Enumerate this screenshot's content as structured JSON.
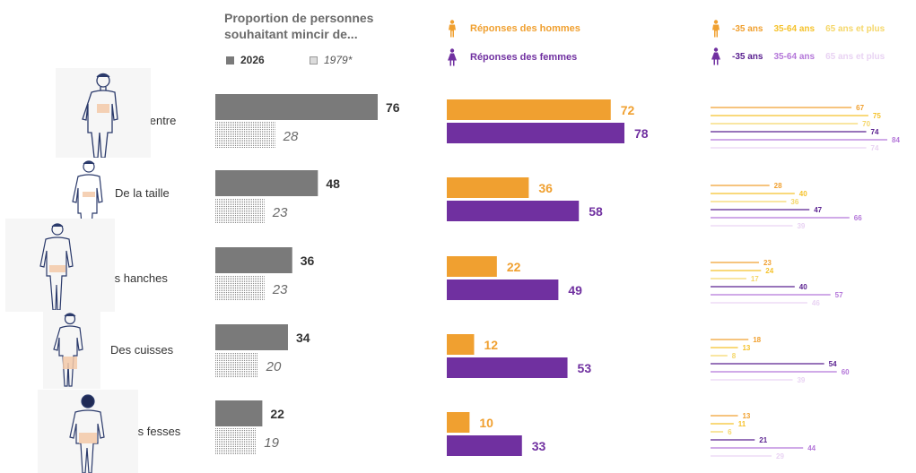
{
  "header": {
    "title": "Proportion de personnes souhaitant mincir de...",
    "legend_2026": "2026",
    "legend_1979": "1979*",
    "legend_hommes": "Réponses des hommes",
    "legend_femmes": "Réponses des femmes",
    "age_groups": [
      "-35 ans",
      "35-64 ans",
      "65 ans et plus"
    ]
  },
  "colors": {
    "total_2026": "#7a7a7a",
    "total_1979_dots": "#8a8a8a",
    "hommes": "#f0a030",
    "femmes": "#7030a0",
    "hommes_ages": [
      "#f0a030",
      "#f5c22c",
      "#f5d76a"
    ],
    "femmes_ages": [
      "#5a2190",
      "#b477d9",
      "#e9d3f3"
    ],
    "text_dark": "#333333",
    "text_italic": "#6a6a6a"
  },
  "chart_data": {
    "type": "bar",
    "categories": [
      "Du ventre",
      "De la taille",
      "Des hanches",
      "Des cuisses",
      "Des fesses"
    ],
    "totals": {
      "series": [
        {
          "name": "2026",
          "values": [
            76,
            48,
            36,
            34,
            22
          ]
        },
        {
          "name": "1979*",
          "values": [
            28,
            23,
            23,
            20,
            19
          ]
        }
      ]
    },
    "by_sex": {
      "series": [
        {
          "name": "Réponses des hommes",
          "values": [
            72,
            36,
            22,
            12,
            10
          ]
        },
        {
          "name": "Réponses des femmes",
          "values": [
            78,
            58,
            49,
            53,
            33
          ]
        }
      ]
    },
    "by_sex_age": {
      "series": [
        {
          "name": "Hommes -35 ans",
          "values": [
            67,
            28,
            23,
            18,
            13
          ]
        },
        {
          "name": "Hommes 35-64 ans",
          "values": [
            75,
            40,
            24,
            13,
            11
          ]
        },
        {
          "name": "Hommes 65 ans et plus",
          "values": [
            70,
            36,
            17,
            8,
            6
          ]
        },
        {
          "name": "Femmes -35 ans",
          "values": [
            74,
            47,
            40,
            54,
            21
          ]
        },
        {
          "name": "Femmes 35-64 ans",
          "values": [
            84,
            66,
            57,
            60,
            44
          ]
        },
        {
          "name": "Femmes 65 ans et plus",
          "values": [
            74,
            39,
            46,
            39,
            29
          ]
        }
      ]
    }
  }
}
